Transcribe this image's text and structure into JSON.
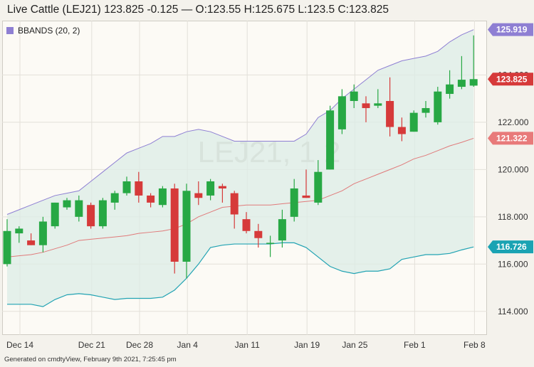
{
  "header": {
    "title": "Live Cattle (LEJ21) 123.825 -0.125 — O:123.55 H:125.675 L:123.5 C:123.825"
  },
  "legend": {
    "label": "BBANDS (20, 2)",
    "color": "#8e7fd3"
  },
  "watermark": "LEJ21, 1 2",
  "footer": "Generated on cmdtyView, February 9th 2021, 7:25:45 pm",
  "chart_data": {
    "type": "candlestick",
    "ylim": [
      113.0,
      126.3
    ],
    "yticks": [
      114.0,
      116.0,
      118.0,
      120.0,
      122.0,
      124.0
    ],
    "ytick_labels": [
      "114.000",
      "116.000",
      "118.000",
      "120.000",
      "122.000",
      "124.000"
    ],
    "xtick_labels": [
      {
        "label": "Dec 14",
        "index": 0
      },
      {
        "label": "Dec 21",
        "index": 6
      },
      {
        "label": "Dec 28",
        "index": 10
      },
      {
        "label": "Jan 4",
        "index": 14
      },
      {
        "label": "Jan 11",
        "index": 19
      },
      {
        "label": "Jan 19",
        "index": 24
      },
      {
        "label": "Jan 25",
        "index": 28
      },
      {
        "label": "Feb 1",
        "index": 33
      },
      {
        "label": "Feb 8",
        "index": 38
      }
    ],
    "colors": {
      "up": "#27a844",
      "down": "#d63a3a",
      "upper": "#8e7fd3",
      "middle": "#e07a7a",
      "lower": "#22a3b3",
      "band_fill": "#dcece6"
    },
    "candles": [
      {
        "o": 116.0,
        "h": 117.9,
        "l": 115.9,
        "c": 117.4
      },
      {
        "o": 117.3,
        "h": 117.6,
        "l": 116.9,
        "c": 117.5
      },
      {
        "o": 117.0,
        "h": 117.3,
        "l": 116.8,
        "c": 116.8
      },
      {
        "o": 116.8,
        "h": 118.0,
        "l": 116.5,
        "c": 117.8
      },
      {
        "o": 117.6,
        "h": 118.6,
        "l": 117.5,
        "c": 118.6
      },
      {
        "o": 118.4,
        "h": 118.8,
        "l": 118.3,
        "c": 118.7
      },
      {
        "o": 118.0,
        "h": 118.9,
        "l": 117.8,
        "c": 118.7
      },
      {
        "o": 118.5,
        "h": 118.6,
        "l": 117.5,
        "c": 117.6
      },
      {
        "o": 117.6,
        "h": 118.8,
        "l": 117.5,
        "c": 118.7
      },
      {
        "o": 118.6,
        "h": 119.1,
        "l": 118.3,
        "c": 119.0
      },
      {
        "o": 119.0,
        "h": 119.7,
        "l": 118.9,
        "c": 119.5
      },
      {
        "o": 119.5,
        "h": 119.9,
        "l": 118.6,
        "c": 118.9
      },
      {
        "o": 118.9,
        "h": 119.0,
        "l": 118.4,
        "c": 118.6
      },
      {
        "o": 118.5,
        "h": 119.3,
        "l": 118.4,
        "c": 119.2
      },
      {
        "o": 119.2,
        "h": 119.4,
        "l": 115.6,
        "c": 116.1
      },
      {
        "o": 116.1,
        "h": 119.4,
        "l": 115.4,
        "c": 119.1
      },
      {
        "o": 119.0,
        "h": 119.5,
        "l": 118.5,
        "c": 118.8
      },
      {
        "o": 118.9,
        "h": 119.6,
        "l": 118.7,
        "c": 119.5
      },
      {
        "o": 119.3,
        "h": 119.4,
        "l": 118.6,
        "c": 119.2
      },
      {
        "o": 119.0,
        "h": 119.1,
        "l": 117.5,
        "c": 118.1
      },
      {
        "o": 117.9,
        "h": 118.2,
        "l": 117.3,
        "c": 117.4
      },
      {
        "o": 117.4,
        "h": 117.7,
        "l": 116.7,
        "c": 117.1
      },
      {
        "o": 116.9,
        "h": 117.2,
        "l": 116.3,
        "c": 116.9
      },
      {
        "o": 117.0,
        "h": 118.3,
        "l": 116.7,
        "c": 117.9
      },
      {
        "o": 118.0,
        "h": 119.6,
        "l": 117.8,
        "c": 119.2
      },
      {
        "o": 118.9,
        "h": 120.0,
        "l": 118.8,
        "c": 118.8
      },
      {
        "o": 118.6,
        "h": 120.4,
        "l": 118.5,
        "c": 119.9
      },
      {
        "o": 120.0,
        "h": 122.7,
        "l": 120.0,
        "c": 122.5
      },
      {
        "o": 121.7,
        "h": 123.4,
        "l": 121.5,
        "c": 123.1
      },
      {
        "o": 122.9,
        "h": 123.6,
        "l": 122.6,
        "c": 123.3
      },
      {
        "o": 122.8,
        "h": 123.1,
        "l": 122.0,
        "c": 122.6
      },
      {
        "o": 122.7,
        "h": 123.4,
        "l": 122.6,
        "c": 122.8
      },
      {
        "o": 122.9,
        "h": 123.9,
        "l": 121.4,
        "c": 121.8
      },
      {
        "o": 121.8,
        "h": 122.2,
        "l": 121.2,
        "c": 121.5
      },
      {
        "o": 121.6,
        "h": 122.5,
        "l": 121.6,
        "c": 122.4
      },
      {
        "o": 122.4,
        "h": 122.9,
        "l": 122.2,
        "c": 122.6
      },
      {
        "o": 122.0,
        "h": 123.5,
        "l": 121.9,
        "c": 123.3
      },
      {
        "o": 123.2,
        "h": 124.2,
        "l": 123.0,
        "c": 123.6
      },
      {
        "o": 123.5,
        "h": 124.8,
        "l": 123.4,
        "c": 123.8
      },
      {
        "o": 123.55,
        "h": 125.675,
        "l": 123.5,
        "c": 123.825
      }
    ],
    "upper_band": [
      118.1,
      118.3,
      118.5,
      118.7,
      118.9,
      119.0,
      119.1,
      119.5,
      119.9,
      120.3,
      120.7,
      120.9,
      121.1,
      121.4,
      121.4,
      121.6,
      121.7,
      121.6,
      121.4,
      121.2,
      121.2,
      121.2,
      121.2,
      121.2,
      121.2,
      121.5,
      122.2,
      122.5,
      123.0,
      123.4,
      123.8,
      124.2,
      124.4,
      124.6,
      124.7,
      124.8,
      125.0,
      125.4,
      125.7,
      125.919
    ],
    "middle_band": [
      116.3,
      116.35,
      116.4,
      116.5,
      116.65,
      116.8,
      117.0,
      117.05,
      117.1,
      117.15,
      117.2,
      117.3,
      117.35,
      117.4,
      117.5,
      117.7,
      118.0,
      118.2,
      118.4,
      118.45,
      118.5,
      118.5,
      118.5,
      118.55,
      118.6,
      118.65,
      118.7,
      118.9,
      119.1,
      119.4,
      119.6,
      119.8,
      120.0,
      120.2,
      120.45,
      120.6,
      120.8,
      121.0,
      121.15,
      121.322
    ],
    "lower_band": [
      114.3,
      114.3,
      114.3,
      114.2,
      114.5,
      114.7,
      114.75,
      114.7,
      114.6,
      114.5,
      114.55,
      114.55,
      114.55,
      114.6,
      114.9,
      115.4,
      116.0,
      116.7,
      116.8,
      116.85,
      116.85,
      116.85,
      116.85,
      116.9,
      116.9,
      116.7,
      116.3,
      115.9,
      115.7,
      115.6,
      115.7,
      115.7,
      115.8,
      116.2,
      116.3,
      116.4,
      116.4,
      116.45,
      116.6,
      116.726
    ],
    "tags": [
      {
        "label": "125.919",
        "value": 125.919,
        "color": "#8e7fd3"
      },
      {
        "label": "123.825",
        "value": 123.825,
        "color": "#d63a3a"
      },
      {
        "label": "121.322",
        "value": 121.322,
        "color": "#e87a7a"
      },
      {
        "label": "116.726",
        "value": 116.726,
        "color": "#1aa3b3"
      }
    ]
  }
}
